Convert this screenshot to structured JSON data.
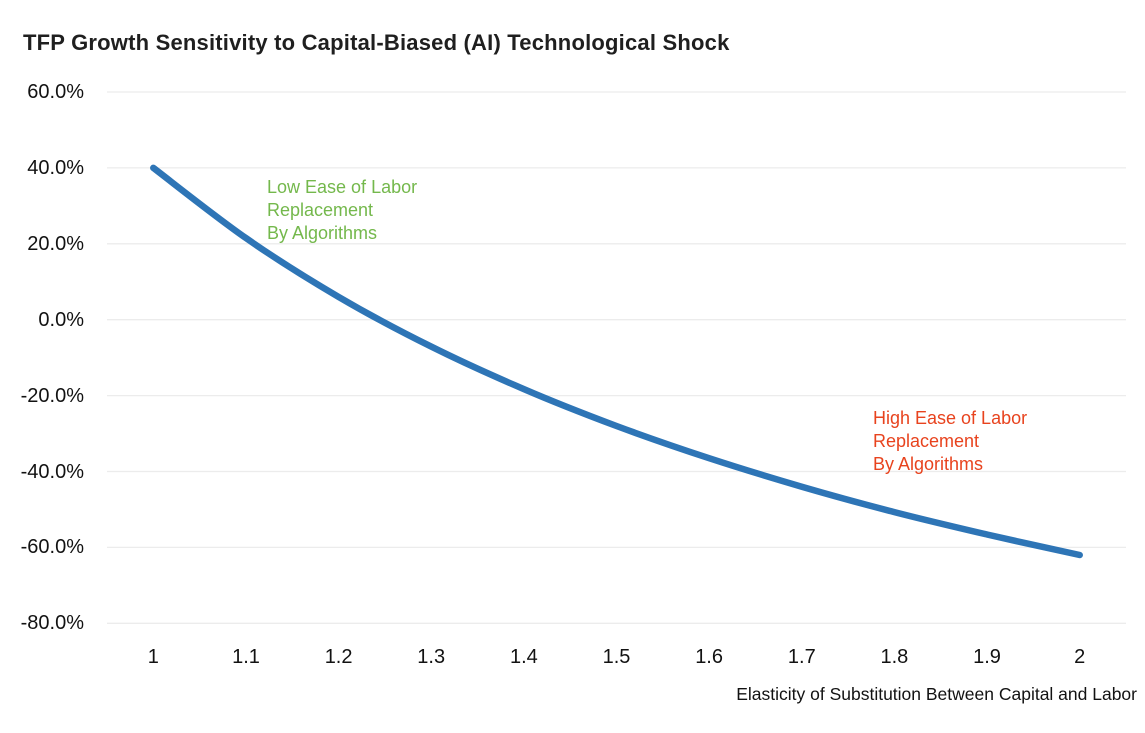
{
  "chart_data": {
    "type": "line",
    "title": "TFP Growth Sensitivity to Capital-Biased (AI) Technological Shock",
    "xlabel": "Elasticity of Substitution Between Capital and Labor",
    "ylabel": "",
    "x": [
      1.0,
      1.1,
      1.2,
      1.3,
      1.4,
      1.5,
      1.6,
      1.7,
      1.8,
      1.9,
      2.0
    ],
    "x_tick_labels": [
      "1",
      "1.1",
      "1.2",
      "1.3",
      "1.4",
      "1.5",
      "1.6",
      "1.7",
      "1.8",
      "1.9",
      "2"
    ],
    "y_tick_labels": [
      "60.0%",
      "40.0%",
      "20.0%",
      "0.0%",
      "-20.0%",
      "-40.0%",
      "-60.0%",
      "-80.0%"
    ],
    "ylim": [
      -80,
      60
    ],
    "y_tick_step": 20,
    "grid": "horizontal-only",
    "legend": "none",
    "series": [
      {
        "name": "TFP growth sensitivity",
        "color": "#2E75B6",
        "values": [
          40.0,
          21.5,
          6.0,
          -7.1,
          -18.3,
          -28.0,
          -36.5,
          -44.0,
          -50.7,
          -56.6,
          -62.0
        ]
      }
    ],
    "annotations": [
      {
        "id": "low-ease",
        "text": "Low Ease of Labor\nReplacement\nBy Algorithms",
        "color": "#74B84C"
      },
      {
        "id": "high-ease",
        "text": "High Ease of Labor\nReplacement\nBy Algorithms",
        "color": "#E8431E"
      }
    ],
    "colors": {
      "gridline": "#ececec",
      "title_text": "#1f1f1f",
      "tick_text": "#121212",
      "background": "#ffffff"
    }
  }
}
